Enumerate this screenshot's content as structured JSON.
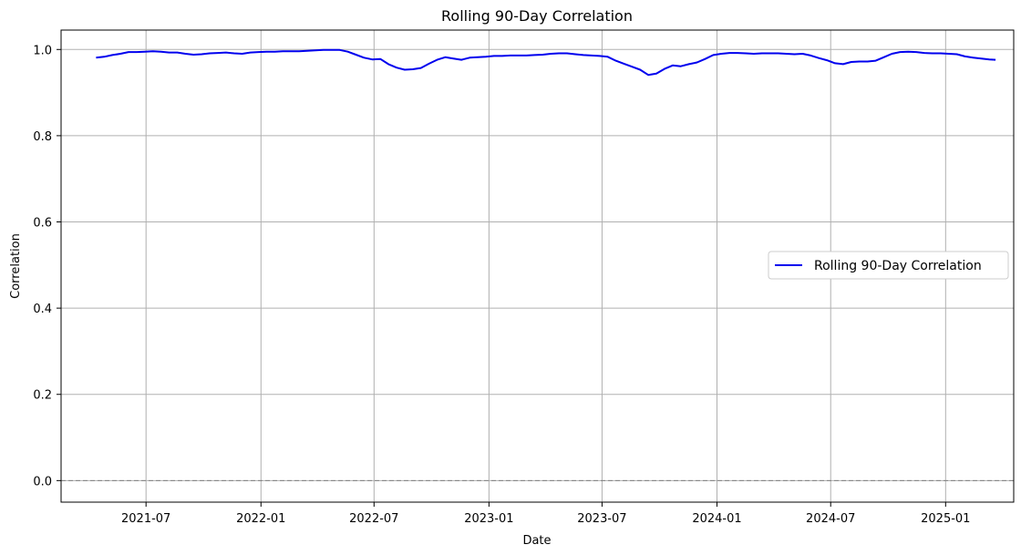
{
  "chart_data": {
    "type": "line",
    "title": "Rolling 90-Day Correlation",
    "xlabel": "Date",
    "ylabel": "Correlation",
    "x_range": [
      "2021-02-15",
      "2025-04-20"
    ],
    "ylim": [
      -0.05,
      1.045
    ],
    "x_ticks": [
      {
        "date": "2021-07-01",
        "label": "2021-07"
      },
      {
        "date": "2022-01-01",
        "label": "2022-01"
      },
      {
        "date": "2022-07-01",
        "label": "2022-07"
      },
      {
        "date": "2023-01-01",
        "label": "2023-01"
      },
      {
        "date": "2023-07-01",
        "label": "2023-07"
      },
      {
        "date": "2024-01-01",
        "label": "2024-01"
      },
      {
        "date": "2024-07-01",
        "label": "2024-07"
      },
      {
        "date": "2025-01-01",
        "label": "2025-01"
      }
    ],
    "y_ticks": [
      {
        "value": 0.0,
        "label": "0.0"
      },
      {
        "value": 0.2,
        "label": "0.2"
      },
      {
        "value": 0.4,
        "label": "0.4"
      },
      {
        "value": 0.6,
        "label": "0.6"
      },
      {
        "value": 0.8,
        "label": "0.8"
      },
      {
        "value": 1.0,
        "label": "1.0"
      }
    ],
    "grid": true,
    "reference_line": {
      "value": 0.0,
      "style": "dashed",
      "color": "#808080"
    },
    "legend": {
      "position": "center-right"
    },
    "series": [
      {
        "name": "Rolling 90-Day Correlation",
        "color": "#0000ee",
        "points": [
          [
            "2021-04-12",
            0.981
          ],
          [
            "2021-04-25",
            0.983
          ],
          [
            "2021-05-08",
            0.987
          ],
          [
            "2021-05-21",
            0.99
          ],
          [
            "2021-06-03",
            0.994
          ],
          [
            "2021-06-16",
            0.994
          ],
          [
            "2021-06-29",
            0.995
          ],
          [
            "2021-07-12",
            0.996
          ],
          [
            "2021-07-25",
            0.995
          ],
          [
            "2021-08-07",
            0.993
          ],
          [
            "2021-08-20",
            0.993
          ],
          [
            "2021-09-02",
            0.99
          ],
          [
            "2021-09-15",
            0.988
          ],
          [
            "2021-09-28",
            0.989
          ],
          [
            "2021-10-11",
            0.991
          ],
          [
            "2021-10-24",
            0.992
          ],
          [
            "2021-11-06",
            0.993
          ],
          [
            "2021-11-19",
            0.991
          ],
          [
            "2021-12-02",
            0.99
          ],
          [
            "2021-12-15",
            0.993
          ],
          [
            "2021-12-28",
            0.994
          ],
          [
            "2022-01-10",
            0.995
          ],
          [
            "2022-01-23",
            0.995
          ],
          [
            "2022-02-05",
            0.996
          ],
          [
            "2022-02-18",
            0.996
          ],
          [
            "2022-03-03",
            0.996
          ],
          [
            "2022-03-16",
            0.997
          ],
          [
            "2022-03-29",
            0.998
          ],
          [
            "2022-04-11",
            0.999
          ],
          [
            "2022-04-24",
            0.999
          ],
          [
            "2022-05-07",
            0.999
          ],
          [
            "2022-05-20",
            0.995
          ],
          [
            "2022-06-02",
            0.988
          ],
          [
            "2022-06-15",
            0.981
          ],
          [
            "2022-06-28",
            0.977
          ],
          [
            "2022-07-11",
            0.978
          ],
          [
            "2022-07-24",
            0.966
          ],
          [
            "2022-08-06",
            0.958
          ],
          [
            "2022-08-19",
            0.953
          ],
          [
            "2022-09-01",
            0.954
          ],
          [
            "2022-09-14",
            0.957
          ],
          [
            "2022-09-27",
            0.967
          ],
          [
            "2022-10-10",
            0.976
          ],
          [
            "2022-10-23",
            0.982
          ],
          [
            "2022-11-05",
            0.979
          ],
          [
            "2022-11-18",
            0.976
          ],
          [
            "2022-12-01",
            0.981
          ],
          [
            "2022-12-14",
            0.982
          ],
          [
            "2022-12-27",
            0.983
          ],
          [
            "2023-01-09",
            0.985
          ],
          [
            "2023-01-22",
            0.985
          ],
          [
            "2023-02-04",
            0.986
          ],
          [
            "2023-02-17",
            0.986
          ],
          [
            "2023-03-02",
            0.986
          ],
          [
            "2023-03-15",
            0.987
          ],
          [
            "2023-03-28",
            0.988
          ],
          [
            "2023-04-10",
            0.99
          ],
          [
            "2023-04-23",
            0.991
          ],
          [
            "2023-05-06",
            0.991
          ],
          [
            "2023-05-19",
            0.989
          ],
          [
            "2023-06-01",
            0.987
          ],
          [
            "2023-06-14",
            0.986
          ],
          [
            "2023-06-27",
            0.985
          ],
          [
            "2023-07-10",
            0.983
          ],
          [
            "2023-07-23",
            0.974
          ],
          [
            "2023-08-05",
            0.967
          ],
          [
            "2023-08-18",
            0.96
          ],
          [
            "2023-08-31",
            0.953
          ],
          [
            "2023-09-13",
            0.941
          ],
          [
            "2023-09-26",
            0.944
          ],
          [
            "2023-10-09",
            0.955
          ],
          [
            "2023-10-22",
            0.963
          ],
          [
            "2023-11-04",
            0.961
          ],
          [
            "2023-11-17",
            0.966
          ],
          [
            "2023-11-30",
            0.97
          ],
          [
            "2023-12-13",
            0.978
          ],
          [
            "2023-12-26",
            0.987
          ],
          [
            "2024-01-08",
            0.99
          ],
          [
            "2024-01-21",
            0.992
          ],
          [
            "2024-02-03",
            0.992
          ],
          [
            "2024-02-16",
            0.991
          ],
          [
            "2024-02-29",
            0.99
          ],
          [
            "2024-03-13",
            0.991
          ],
          [
            "2024-03-26",
            0.991
          ],
          [
            "2024-04-08",
            0.991
          ],
          [
            "2024-04-21",
            0.99
          ],
          [
            "2024-05-04",
            0.989
          ],
          [
            "2024-05-17",
            0.99
          ],
          [
            "2024-05-30",
            0.986
          ],
          [
            "2024-06-12",
            0.98
          ],
          [
            "2024-06-25",
            0.975
          ],
          [
            "2024-07-08",
            0.968
          ],
          [
            "2024-07-21",
            0.966
          ],
          [
            "2024-08-03",
            0.971
          ],
          [
            "2024-08-16",
            0.972
          ],
          [
            "2024-08-29",
            0.972
          ],
          [
            "2024-09-11",
            0.974
          ],
          [
            "2024-09-24",
            0.982
          ],
          [
            "2024-10-07",
            0.99
          ],
          [
            "2024-10-20",
            0.994
          ],
          [
            "2024-11-02",
            0.995
          ],
          [
            "2024-11-15",
            0.994
          ],
          [
            "2024-11-28",
            0.992
          ],
          [
            "2024-12-11",
            0.991
          ],
          [
            "2024-12-24",
            0.991
          ],
          [
            "2025-01-06",
            0.99
          ],
          [
            "2025-01-19",
            0.989
          ],
          [
            "2025-02-01",
            0.984
          ],
          [
            "2025-02-14",
            0.981
          ],
          [
            "2025-02-27",
            0.979
          ],
          [
            "2025-03-12",
            0.977
          ],
          [
            "2025-03-22",
            0.976
          ]
        ]
      }
    ]
  }
}
